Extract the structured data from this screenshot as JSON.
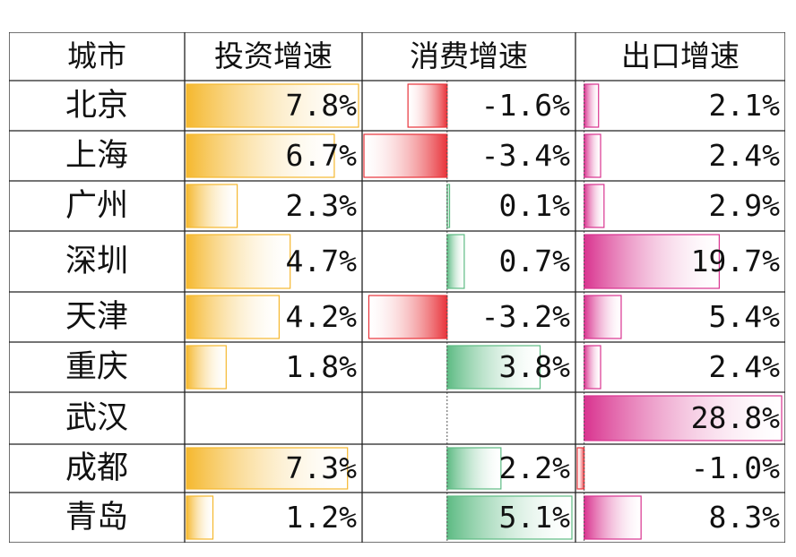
{
  "table": {
    "headers": [
      "城市",
      "投资增速",
      "消费增速",
      "出口增速"
    ]
  },
  "chart_data": {
    "type": "table",
    "columns": [
      "城市",
      "投资增速",
      "消费增速",
      "出口增速"
    ],
    "categories": [
      "北京",
      "上海",
      "广州",
      "深圳",
      "天津",
      "重庆",
      "武汉",
      "成都",
      "青岛"
    ],
    "series": [
      {
        "name": "投资增速",
        "values": [
          7.8,
          6.7,
          2.3,
          4.7,
          4.2,
          1.8,
          null,
          7.3,
          1.2
        ],
        "labels": [
          "7.8%",
          "6.7%",
          "2.3%",
          "4.7%",
          "4.2%",
          "1.8%",
          "",
          "7.3%",
          "1.2%"
        ]
      },
      {
        "name": "消费增速",
        "values": [
          -1.6,
          -3.4,
          0.1,
          0.7,
          -3.2,
          3.8,
          null,
          2.2,
          5.1
        ],
        "labels": [
          "-1.6%",
          "-3.4%",
          "0.1%",
          "0.7%",
          "-3.2%",
          "3.8%",
          "",
          "2.2%",
          "5.1%"
        ]
      },
      {
        "name": "出口增速",
        "values": [
          2.1,
          2.4,
          2.9,
          19.7,
          5.4,
          2.4,
          28.8,
          -1.0,
          8.3
        ],
        "labels": [
          "2.1%",
          "2.4%",
          "2.9%",
          "19.7%",
          "5.4%",
          "2.4%",
          "28.8%",
          "-1.0%",
          "8.3%"
        ]
      }
    ],
    "colors": {
      "investment": "#f5b82e",
      "consumption_negative": "#e8333a",
      "consumption_positive": "#5dbb83",
      "export": "#d9338f",
      "grid": "#222222"
    }
  }
}
